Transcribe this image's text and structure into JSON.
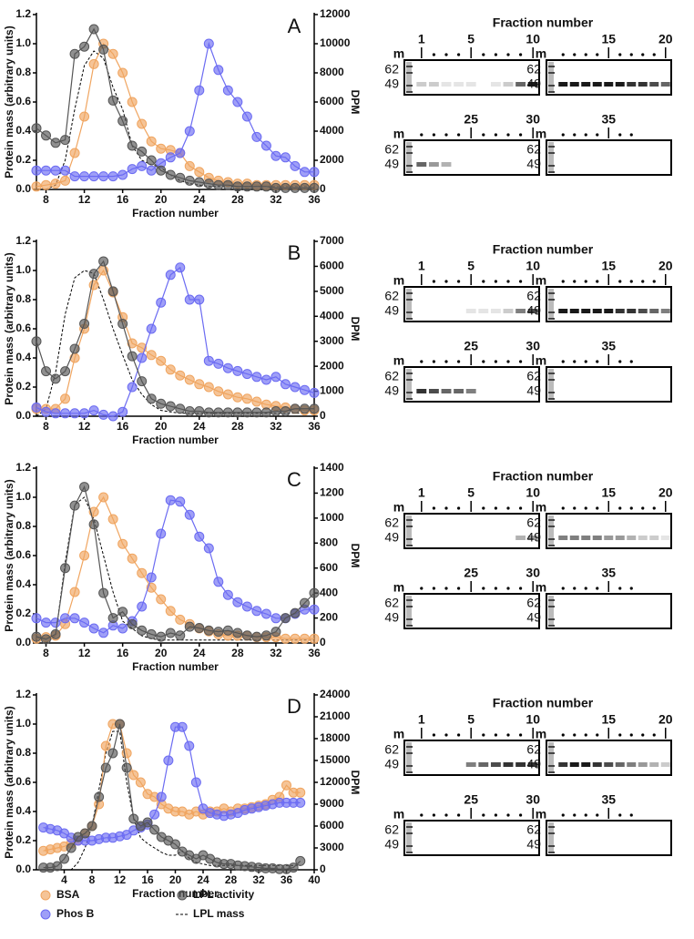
{
  "chart_data": [
    {
      "type": "line",
      "panel_label": "A",
      "x_label": "Fraction number",
      "y_label": "Protein mass (arbitrary units)",
      "y2_label": "DPM",
      "xlim": [
        7,
        36
      ],
      "xticks": [
        8,
        12,
        16,
        20,
        24,
        28,
        32,
        36
      ],
      "ylim": [
        0,
        1.2
      ],
      "yticks": [
        {
          "value": 0,
          "label": "0.0"
        },
        0.2,
        0.4,
        0.6,
        0.8,
        {
          "value": 1,
          "label": "1.0"
        },
        1.2
      ],
      "y2lim": [
        0,
        12000
      ],
      "y2ticks": [
        0,
        2000,
        4000,
        6000,
        8000,
        10000,
        12000
      ],
      "x": [
        7,
        8,
        9,
        10,
        11,
        12,
        13,
        14,
        15,
        16,
        17,
        18,
        19,
        20,
        21,
        22,
        23,
        24,
        25,
        26,
        27,
        28,
        29,
        30,
        31,
        32,
        33,
        34,
        35,
        36
      ],
      "series": [
        {
          "name": "BSA",
          "color": "#f0a560",
          "axis": "y",
          "values": [
            0.02,
            0.03,
            0.04,
            0.06,
            0.25,
            0.5,
            0.86,
            1.0,
            0.93,
            0.8,
            0.6,
            0.45,
            0.33,
            0.28,
            0.27,
            0.25,
            0.16,
            0.12,
            0.08,
            0.06,
            0.05,
            0.04,
            0.04,
            0.03,
            0.03,
            0.03,
            0.03,
            0.03,
            0.03,
            0.03
          ]
        },
        {
          "name": "Phos B",
          "color": "#6b6bf2",
          "axis": "y",
          "values": [
            0.13,
            0.13,
            0.13,
            0.13,
            0.09,
            0.09,
            0.09,
            0.09,
            0.09,
            0.1,
            0.14,
            0.16,
            0.13,
            0.18,
            0.22,
            0.25,
            0.4,
            0.68,
            1.0,
            0.82,
            0.68,
            0.6,
            0.5,
            0.36,
            0.3,
            0.23,
            0.22,
            0.16,
            0.12,
            0.12
          ]
        },
        {
          "name": "LPL activity",
          "color": "#555555",
          "axis": "y2",
          "values": [
            4200,
            3700,
            3200,
            3400,
            9300,
            9800,
            11000,
            9600,
            6100,
            4700,
            3000,
            2600,
            2000,
            1300,
            1000,
            800,
            600,
            500,
            400,
            300,
            300,
            200,
            200,
            200,
            200,
            100,
            100,
            100,
            100,
            100
          ]
        },
        {
          "name": "LPL mass",
          "color": "#000000",
          "axis": "y",
          "dashed": true,
          "values": [
            0,
            0,
            0.03,
            0.2,
            0.55,
            0.85,
            0.95,
            0.9,
            0.7,
            0.55,
            0.3,
            0.2,
            0.17,
            0.15,
            0.1,
            0.06,
            0.04,
            0.03,
            0.02,
            0.02,
            0.02,
            0.02,
            0.02,
            0.02,
            0.02,
            0.02,
            0.02,
            0.02,
            0.02,
            0.02
          ]
        }
      ]
    },
    {
      "type": "line",
      "panel_label": "B",
      "x_label": "Fraction number",
      "y_label": "Protein mass (arbitrary units)",
      "y2_label": "DPM",
      "xlim": [
        7,
        36
      ],
      "xticks": [
        8,
        12,
        16,
        20,
        24,
        28,
        32,
        36
      ],
      "ylim": [
        0,
        1.2
      ],
      "yticks": [
        {
          "value": 0,
          "label": "0.0"
        },
        0.2,
        0.4,
        0.6,
        0.8,
        {
          "value": 1,
          "label": "1.0"
        },
        1.2
      ],
      "y2lim": [
        0,
        7000
      ],
      "y2ticks": [
        0,
        1000,
        2000,
        3000,
        4000,
        5000,
        6000,
        7000
      ],
      "x": [
        7,
        8,
        9,
        10,
        11,
        12,
        13,
        14,
        15,
        16,
        17,
        18,
        19,
        20,
        21,
        22,
        23,
        24,
        25,
        26,
        27,
        28,
        29,
        30,
        31,
        32,
        33,
        34,
        35,
        36
      ],
      "series": [
        {
          "name": "BSA",
          "color": "#f0a560",
          "axis": "y",
          "values": [
            0.05,
            0.05,
            0.05,
            0.12,
            0.4,
            0.6,
            0.9,
            1.0,
            0.85,
            0.68,
            0.5,
            0.47,
            0.42,
            0.38,
            0.32,
            0.28,
            0.25,
            0.22,
            0.2,
            0.17,
            0.15,
            0.13,
            0.12,
            0.1,
            0.08,
            0.07,
            0.06,
            0.05,
            0.04,
            0.04
          ]
        },
        {
          "name": "Phos B",
          "color": "#6b6bf2",
          "axis": "y",
          "values": [
            0.06,
            0.03,
            0.02,
            0.02,
            0.02,
            0.02,
            0.04,
            0.01,
            0.0,
            0.03,
            0.2,
            0.4,
            0.6,
            0.78,
            0.97,
            1.02,
            0.8,
            0.8,
            0.38,
            0.36,
            0.33,
            0.31,
            0.29,
            0.27,
            0.25,
            0.27,
            0.22,
            0.2,
            0.18,
            0.16
          ]
        },
        {
          "name": "LPL activity",
          "color": "#555555",
          "axis": "y2",
          "values": [
            3000,
            1800,
            1500,
            1800,
            2700,
            3700,
            5700,
            6200,
            5000,
            3700,
            2400,
            1400,
            700,
            500,
            400,
            300,
            200,
            200,
            150,
            150,
            150,
            150,
            150,
            150,
            150,
            200,
            200,
            300,
            300,
            300
          ]
        },
        {
          "name": "LPL mass",
          "color": "#000000",
          "axis": "y",
          "dashed": true,
          "values": [
            0,
            0.05,
            0.3,
            0.7,
            0.95,
            1.0,
            0.98,
            0.8,
            0.6,
            0.42,
            0.25,
            0.15,
            0.08,
            0.04,
            0.03,
            0.02,
            0.02,
            0.02,
            0.02,
            0.02,
            0.02,
            0.02,
            0.02,
            0.02,
            0.02,
            0.02,
            0.02,
            0.02,
            0.02,
            0.02
          ]
        }
      ]
    },
    {
      "type": "line",
      "panel_label": "C",
      "x_label": "Fraction number",
      "y_label": "Protein mass (arbitrary units)",
      "y2_label": "DPM",
      "xlim": [
        7,
        36
      ],
      "xticks": [
        8,
        12,
        16,
        20,
        24,
        28,
        32,
        36
      ],
      "ylim": [
        0,
        1.2
      ],
      "yticks": [
        {
          "value": 0,
          "label": "0.0"
        },
        0.2,
        0.4,
        0.6,
        0.8,
        {
          "value": 1,
          "label": "1.0"
        },
        1.2
      ],
      "y2lim": [
        0,
        1400
      ],
      "y2ticks": [
        0,
        200,
        400,
        600,
        800,
        1000,
        1200,
        1400
      ],
      "x": [
        7,
        8,
        9,
        10,
        11,
        12,
        13,
        14,
        15,
        16,
        17,
        18,
        19,
        20,
        21,
        22,
        23,
        24,
        25,
        26,
        27,
        28,
        29,
        30,
        31,
        32,
        33,
        34,
        35,
        36
      ],
      "series": [
        {
          "name": "BSA",
          "color": "#f0a560",
          "axis": "y",
          "values": [
            0.03,
            0.04,
            0.05,
            0.13,
            0.35,
            0.6,
            0.9,
            1.0,
            0.85,
            0.68,
            0.58,
            0.48,
            0.38,
            0.3,
            0.22,
            0.16,
            0.13,
            0.1,
            0.08,
            0.06,
            0.05,
            0.05,
            0.05,
            0.04,
            0.04,
            0.04,
            0.03,
            0.03,
            0.03,
            0.03
          ]
        },
        {
          "name": "Phos B",
          "color": "#6b6bf2",
          "axis": "y",
          "values": [
            0.17,
            0.14,
            0.14,
            0.17,
            0.17,
            0.14,
            0.1,
            0.07,
            0.12,
            0.1,
            0.15,
            0.25,
            0.45,
            0.75,
            0.98,
            0.97,
            0.88,
            0.73,
            0.65,
            0.42,
            0.33,
            0.28,
            0.25,
            0.22,
            0.2,
            0.17,
            0.17,
            0.2,
            0.23,
            0.23
          ]
        },
        {
          "name": "LPL activity",
          "color": "#555555",
          "axis": "y2",
          "values": [
            50,
            30,
            70,
            600,
            1100,
            1250,
            950,
            400,
            200,
            250,
            150,
            100,
            70,
            50,
            80,
            60,
            130,
            120,
            100,
            90,
            100,
            80,
            60,
            50,
            60,
            90,
            200,
            240,
            320,
            400
          ]
        },
        {
          "name": "LPL mass",
          "color": "#000000",
          "axis": "y",
          "dashed": true,
          "values": [
            0,
            0,
            0.05,
            0.55,
            0.95,
            1.0,
            0.85,
            0.6,
            0.35,
            0.15,
            0.1,
            0.05,
            0.03,
            0.02,
            0.02,
            0.02,
            0.02,
            0.02,
            0.02,
            0.02,
            0.02,
            0.02,
            0.02,
            0.02,
            0.02,
            0.02,
            0.02,
            0.02,
            0.02,
            0.02
          ]
        }
      ]
    },
    {
      "type": "line",
      "panel_label": "D",
      "x_label": "Fraction number",
      "y_label": "Protein mass (arbitrary units)",
      "y2_label": "DPM",
      "xlim": [
        0,
        40
      ],
      "xticks": [
        4,
        8,
        12,
        16,
        20,
        24,
        28,
        32,
        36,
        40
      ],
      "ylim": [
        0,
        1.2
      ],
      "yticks": [
        {
          "value": 0,
          "label": "0.0"
        },
        0.2,
        0.4,
        0.6,
        0.8,
        {
          "value": 1,
          "label": "1.0"
        },
        1.2
      ],
      "y2lim": [
        0,
        24000
      ],
      "y2ticks": [
        0,
        3000,
        6000,
        9000,
        12000,
        15000,
        18000,
        21000,
        24000
      ],
      "x": [
        1,
        2,
        3,
        4,
        5,
        6,
        7,
        8,
        9,
        10,
        11,
        12,
        13,
        14,
        15,
        16,
        17,
        18,
        19,
        20,
        21,
        22,
        23,
        24,
        25,
        26,
        27,
        28,
        29,
        30,
        31,
        32,
        33,
        34,
        35,
        36,
        37,
        38
      ],
      "series": [
        {
          "name": "BSA",
          "color": "#f0a560",
          "axis": "y",
          "values": [
            0.13,
            0.14,
            0.15,
            0.16,
            0.18,
            0.2,
            0.25,
            0.3,
            0.45,
            0.85,
            1.0,
            1.0,
            0.8,
            0.65,
            0.6,
            0.52,
            0.5,
            0.45,
            0.42,
            0.4,
            0.4,
            0.38,
            0.4,
            0.38,
            0.4,
            0.4,
            0.42,
            0.4,
            0.42,
            0.42,
            0.43,
            0.44,
            0.45,
            0.48,
            0.5,
            0.58,
            0.53,
            0.53
          ]
        },
        {
          "name": "Phos B",
          "color": "#6b6bf2",
          "axis": "y",
          "values": [
            0.29,
            0.28,
            0.27,
            0.25,
            0.22,
            0.2,
            0.2,
            0.2,
            0.21,
            0.22,
            0.22,
            0.23,
            0.24,
            0.27,
            0.29,
            0.31,
            0.38,
            0.5,
            0.75,
            0.98,
            0.98,
            0.85,
            0.6,
            0.42,
            0.39,
            0.38,
            0.37,
            0.38,
            0.39,
            0.41,
            0.42,
            0.43,
            0.44,
            0.45,
            0.46,
            0.46,
            0.46,
            0.46
          ]
        },
        {
          "name": "LPL activity",
          "color": "#555555",
          "axis": "y2",
          "values": [
            300,
            300,
            500,
            1500,
            3000,
            4500,
            5000,
            6000,
            10000,
            14000,
            16000,
            20000,
            14000,
            7000,
            6000,
            6500,
            5500,
            4500,
            4000,
            3500,
            2500,
            2000,
            1500,
            2000,
            1500,
            1000,
            800,
            800,
            600,
            500,
            400,
            300,
            200,
            200,
            100,
            100,
            300,
            1200
          ]
        },
        {
          "name": "LPL mass",
          "color": "#000000",
          "axis": "y",
          "dashed": true,
          "values": [
            0,
            0,
            0,
            0,
            0,
            0.05,
            0.15,
            0.3,
            0.55,
            0.8,
            0.95,
            0.95,
            0.6,
            0.35,
            0.22,
            0.18,
            0.15,
            0.12,
            0.1,
            0.1,
            0.13,
            0.08,
            0.05,
            0.04,
            0.03,
            0.03,
            0.03,
            0.03,
            0.03,
            0.03,
            0.03,
            0.03,
            0.03,
            0.03,
            0.03,
            0.03,
            0.03,
            0.03
          ]
        }
      ]
    }
  ],
  "gels": [
    {
      "title": "Fraction number",
      "ladder": "m",
      "markers": [
        62,
        49
      ],
      "lanes": [
        1,
        5,
        10,
        15,
        20,
        25,
        30,
        35
      ]
    },
    {
      "title": "Fraction number",
      "ladder": "m",
      "markers": [
        62,
        49
      ],
      "lanes": [
        1,
        5,
        10,
        15,
        20,
        25,
        30,
        35
      ]
    },
    {
      "title": "Fraction number",
      "ladder": "m",
      "markers": [
        62,
        49
      ],
      "lanes": [
        1,
        5,
        10,
        15,
        20,
        25,
        30,
        35
      ]
    },
    {
      "title": "Fraction number",
      "ladder": "m",
      "markers": [
        62,
        49
      ],
      "lanes": [
        1,
        5,
        10,
        15,
        20,
        25,
        30,
        35
      ]
    }
  ]
}
